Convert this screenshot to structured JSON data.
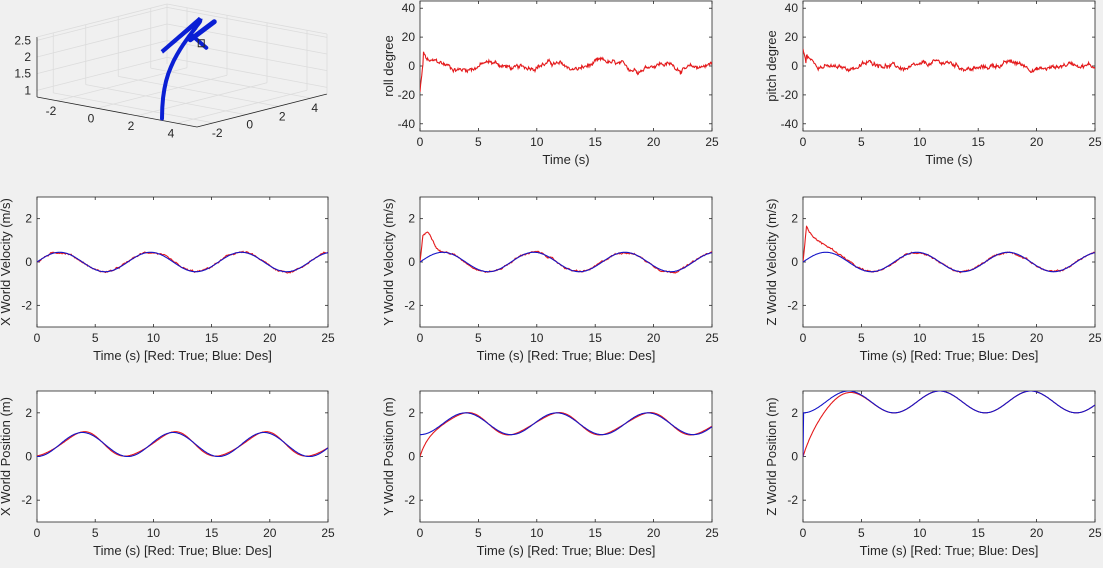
{
  "colors": {
    "true": "#e41a1c",
    "des": "#1515c8",
    "quad": "#0a1fd4"
  },
  "chart_data": [
    {
      "id": "traj3d",
      "type": "line3d",
      "x_ticks": [
        "-2",
        "0",
        "2",
        "4"
      ],
      "y_ticks": [
        "-2",
        "0",
        "2",
        "4"
      ],
      "z_ticks": [
        "1",
        "1.5",
        "2",
        "2.5"
      ]
    },
    {
      "id": "roll",
      "type": "line",
      "xlabel": "Time (s)",
      "ylabel": "roll degree",
      "xlim": [
        0,
        25
      ],
      "ylim": [
        -45,
        45
      ],
      "xticks": [
        0,
        5,
        10,
        15,
        20,
        25
      ],
      "yticks": [
        -40,
        -20,
        0,
        20,
        40
      ],
      "series": [
        {
          "color": "true",
          "kind": "roll_noise"
        }
      ]
    },
    {
      "id": "pitch",
      "type": "line",
      "xlabel": "Time (s)",
      "ylabel": "pitch degree",
      "xlim": [
        0,
        25
      ],
      "ylim": [
        -45,
        45
      ],
      "xticks": [
        0,
        5,
        10,
        15,
        20,
        25
      ],
      "yticks": [
        -40,
        -20,
        0,
        20,
        40
      ],
      "series": [
        {
          "color": "true",
          "kind": "pitch_noise"
        }
      ]
    },
    {
      "id": "xvel",
      "type": "line",
      "xlabel": "Time (s) [Red: True; Blue: Des]",
      "ylabel": "X World Velocity (m/s)",
      "xlim": [
        0,
        25
      ],
      "ylim": [
        -3,
        3
      ],
      "xticks": [
        0,
        5,
        10,
        15,
        20,
        25
      ],
      "yticks": [
        -2,
        0,
        2
      ],
      "series": [
        {
          "color": "true",
          "kind": "xvel_true"
        },
        {
          "color": "des",
          "kind": "vel_des"
        }
      ]
    },
    {
      "id": "yvel",
      "type": "line",
      "xlabel": "Time (s) [Red: True; Blue: Des]",
      "ylabel": "Y World Velocity (m/s)",
      "xlim": [
        0,
        25
      ],
      "ylim": [
        -3,
        3
      ],
      "xticks": [
        0,
        5,
        10,
        15,
        20,
        25
      ],
      "yticks": [
        -2,
        0,
        2
      ],
      "series": [
        {
          "color": "true",
          "kind": "yvel_true"
        },
        {
          "color": "des",
          "kind": "vel_des"
        }
      ]
    },
    {
      "id": "zvel",
      "type": "line",
      "xlabel": "Time (s) [Red: True; Blue: Des]",
      "ylabel": "Z World Velocity (m/s)",
      "xlim": [
        0,
        25
      ],
      "ylim": [
        -3,
        3
      ],
      "xticks": [
        0,
        5,
        10,
        15,
        20,
        25
      ],
      "yticks": [
        -2,
        0,
        2
      ],
      "series": [
        {
          "color": "true",
          "kind": "zvel_true"
        },
        {
          "color": "des",
          "kind": "vel_des"
        }
      ]
    },
    {
      "id": "xpos",
      "type": "line",
      "xlabel": "Time (s) [Red: True; Blue: Des]",
      "ylabel": "X World Position (m)",
      "xlim": [
        0,
        25
      ],
      "ylim": [
        -3,
        3
      ],
      "xticks": [
        0,
        5,
        10,
        15,
        20,
        25
      ],
      "yticks": [
        -2,
        0,
        2
      ],
      "series": [
        {
          "color": "true",
          "kind": "xpos_true"
        },
        {
          "color": "des",
          "kind": "xpos_des"
        }
      ]
    },
    {
      "id": "ypos",
      "type": "line",
      "xlabel": "Time (s) [Red: True; Blue: Des]",
      "ylabel": "Y World Position (m)",
      "xlim": [
        0,
        25
      ],
      "ylim": [
        -3,
        3
      ],
      "xticks": [
        0,
        5,
        10,
        15,
        20,
        25
      ],
      "yticks": [
        -2,
        0,
        2
      ],
      "series": [
        {
          "color": "true",
          "kind": "ypos_true"
        },
        {
          "color": "des",
          "kind": "ypos_des"
        }
      ]
    },
    {
      "id": "zpos",
      "type": "line",
      "xlabel": "Time (s) [Red: True; Blue: Des]",
      "ylabel": "Z World Position (m)",
      "xlim": [
        0,
        25
      ],
      "ylim": [
        -3,
        3
      ],
      "xticks": [
        0,
        5,
        10,
        15,
        20,
        25
      ],
      "yticks": [
        -2,
        0,
        2
      ],
      "series": [
        {
          "color": "true",
          "kind": "zpos_true"
        },
        {
          "color": "des",
          "kind": "zpos_des"
        }
      ]
    }
  ]
}
